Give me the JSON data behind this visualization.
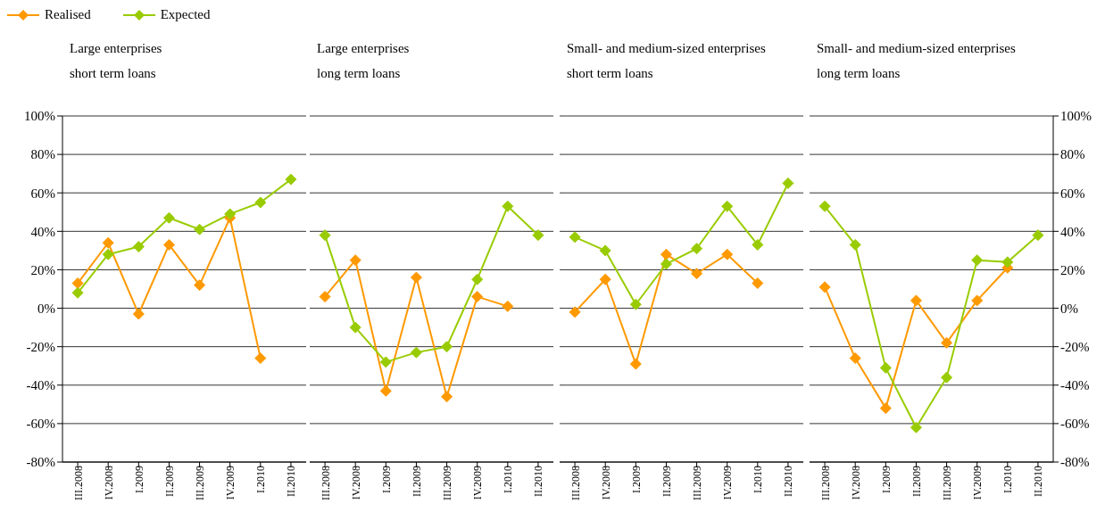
{
  "chart_data": [
    {
      "type": "line",
      "title": "Large enterprises\nshort term loans",
      "categories": [
        "III.2008",
        "IV.2008",
        "I.2009",
        "II.2009",
        "III.2009",
        "IV.2009",
        "I.2010",
        "II.2010"
      ],
      "series": [
        {
          "name": "Realised",
          "color": "#ff9900",
          "values": [
            13,
            34,
            -3,
            33,
            12,
            47,
            -26,
            null
          ]
        },
        {
          "name": "Expected",
          "color": "#99cc00",
          "values": [
            8,
            28,
            32,
            47,
            41,
            49,
            55,
            67
          ]
        }
      ],
      "ylim": [
        -80,
        100
      ],
      "yticks": [
        {
          "value": -80,
          "label": "-80%"
        },
        {
          "value": -60,
          "label": "-60%"
        },
        {
          "value": -40,
          "label": "-40%"
        },
        {
          "value": -20,
          "label": "-20%"
        },
        {
          "value": 0,
          "label": "0%"
        },
        {
          "value": 20,
          "label": "20%"
        },
        {
          "value": 40,
          "label": "40%"
        },
        {
          "value": 60,
          "label": "60%"
        },
        {
          "value": 80,
          "label": "80%"
        },
        {
          "value": 100,
          "label": "100%"
        }
      ],
      "grid": "y",
      "legend": "top left",
      "marker": "diamond"
    },
    {
      "type": "line",
      "title": "Large enterprises\nlong term loans",
      "categories": [
        "III.2008",
        "IV.2008",
        "I.2009",
        "II.2009",
        "III.2009",
        "IV.2009",
        "I.2010",
        "II.2010"
      ],
      "series": [
        {
          "color": "#ff9900",
          "values": [
            6,
            25,
            -43,
            16,
            -46,
            6,
            1,
            null
          ]
        },
        {
          "color": "#99cc00",
          "values": [
            38,
            -10,
            -28,
            -23,
            -20,
            15,
            53,
            38
          ]
        }
      ],
      "ylim": [
        -80,
        100
      ],
      "yticks": [
        -80,
        -60,
        -40,
        -20,
        0,
        20,
        40,
        60,
        80,
        100
      ],
      "grid": "y",
      "tick_labels": "x",
      "marker": "diamond"
    },
    {
      "type": "line",
      "title": "Small- and medium-sized enterprises\nshort term loans",
      "categories": [
        "III.2008",
        "IV.2008",
        "I.2009",
        "II.2009",
        "III.2009",
        "IV.2009",
        "I.2010",
        "II.2010"
      ],
      "series": [
        {
          "color": "#ff9900",
          "values": [
            -2,
            15,
            -29,
            28,
            18,
            28,
            13,
            null
          ]
        },
        {
          "color": "#99cc00",
          "values": [
            37,
            30,
            2,
            23,
            31,
            53,
            33,
            65
          ]
        }
      ],
      "ylim": [
        -80,
        100
      ],
      "yticks": [
        -80,
        -60,
        -40,
        -20,
        0,
        20,
        40,
        60,
        80,
        100
      ],
      "grid": "y",
      "tick_labels": "x",
      "marker": "diamond"
    },
    {
      "type": "line",
      "title": "Small- and medium-sized enterprises\nlong term loans",
      "categories": [
        "III.2008",
        "IV.2008",
        "I.2009",
        "II.2009",
        "III.2009",
        "IV.2009",
        "I.2010",
        "II.2010"
      ],
      "series": [
        {
          "color": "#ff9900",
          "values": [
            11,
            -26,
            -52,
            4,
            -18,
            4,
            21,
            null
          ]
        },
        {
          "color": "#99cc00",
          "values": [
            53,
            33,
            -31,
            -62,
            -36,
            25,
            24,
            38
          ]
        }
      ],
      "ylim": [
        -80,
        100
      ],
      "yticks": [
        {
          "value": -80,
          "label": "-80%"
        },
        {
          "value": -60,
          "label": "-60%"
        },
        {
          "value": -40,
          "label": "-40%"
        },
        {
          "value": -20,
          "label": "-20%"
        },
        {
          "value": 0,
          "label": "0%"
        },
        {
          "value": 20,
          "label": "20%"
        },
        {
          "value": 40,
          "label": "40%"
        },
        {
          "value": 60,
          "label": "60%"
        },
        {
          "value": 80,
          "label": "80%"
        },
        {
          "value": 100,
          "label": "100%"
        }
      ],
      "grid": "y",
      "marker": "diamond"
    }
  ]
}
